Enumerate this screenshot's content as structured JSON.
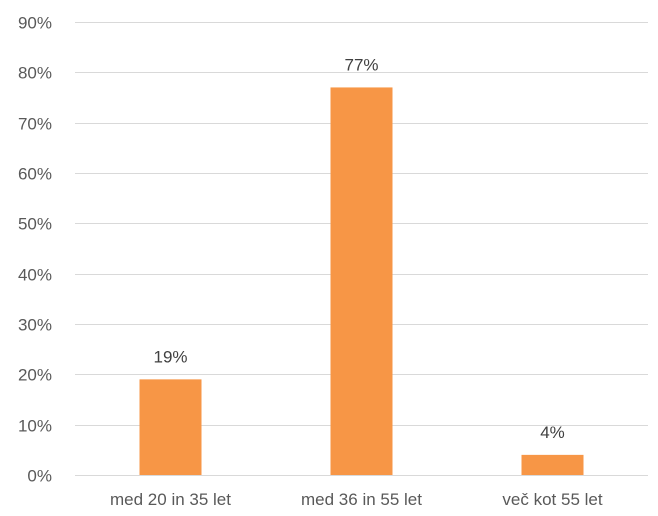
{
  "chart_data": {
    "type": "bar",
    "categories": [
      "med 20 in 35 let",
      "med 36 in 55 let",
      "več kot 55 let"
    ],
    "values": [
      19,
      77,
      4
    ],
    "data_labels": [
      "19%",
      "77%",
      "4%"
    ],
    "ylim": [
      0,
      90
    ],
    "yticks": [
      0,
      10,
      20,
      30,
      40,
      50,
      60,
      70,
      80,
      90
    ],
    "ytick_labels": [
      "0%",
      "10%",
      "20%",
      "30%",
      "40%",
      "50%",
      "60%",
      "70%",
      "80%",
      "90%"
    ],
    "grid": true,
    "legend": "none",
    "bar_color": "#F79646"
  }
}
